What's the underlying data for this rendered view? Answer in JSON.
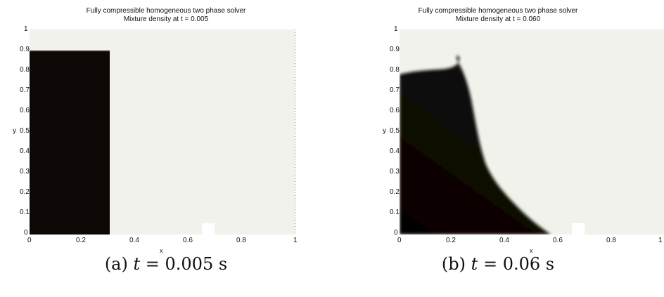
{
  "panel_a": {
    "title_line1": "Fully compressible homogeneous two phase solver",
    "title_line2": "Mixture density at t = 0.005",
    "xlabel": "x",
    "ylabel": "y",
    "xticks": [
      "0",
      "0.2",
      "0.4",
      "0.6",
      "0.8",
      "1"
    ],
    "yticks": [
      "0",
      "0.1",
      "0.2",
      "0.3",
      "0.4",
      "0.5",
      "0.6",
      "0.7",
      "0.8",
      "0.9",
      "1"
    ],
    "caption_prefix": "(a)",
    "caption_var": "t",
    "caption_rest": "= 0.005 s"
  },
  "panel_b": {
    "title_line1": "Fully compressible homogeneous two phase solver",
    "title_line2": "Mixture density at t = 0.060",
    "xlabel": "x",
    "ylabel": "y",
    "xticks": [
      "0",
      "0.2",
      "0.4",
      "0.6",
      "0.8",
      "1"
    ],
    "yticks": [
      "0",
      "0.1",
      "0.2",
      "0.3",
      "0.4",
      "0.5",
      "0.6",
      "0.7",
      "0.8",
      "0.9",
      "1"
    ],
    "caption_prefix": "(b)",
    "caption_var": "t",
    "caption_rest": "= 0.06 s"
  },
  "colors": {
    "background_field": "#f2f2ec",
    "dense_fluid": "#0d0706"
  }
}
